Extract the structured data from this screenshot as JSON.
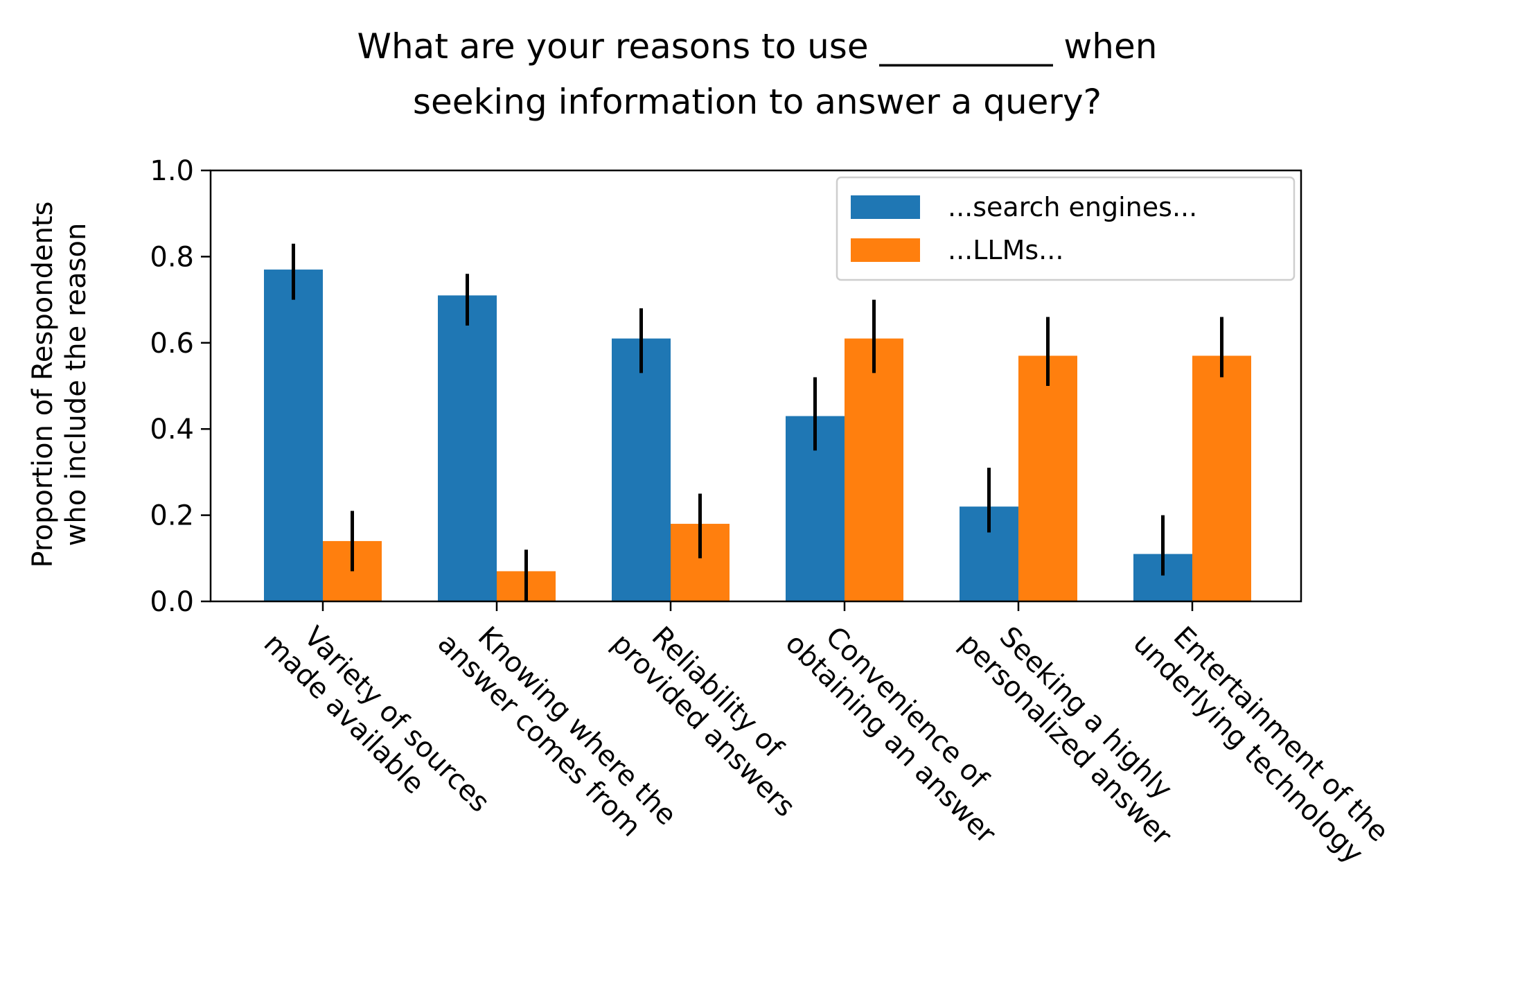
{
  "chart_data": {
    "type": "bar",
    "title_lines": [
      "What are your reasons to use __________ when",
      "seeking information to answer a query?"
    ],
    "ylabel_lines": [
      "Proportion of Respondents",
      "who include the reason"
    ],
    "xlabel": "",
    "ylim": [
      0,
      1.0
    ],
    "yticks": [
      "0.0",
      "0.2",
      "0.4",
      "0.6",
      "0.8",
      "1.0"
    ],
    "ytick_values": [
      0.0,
      0.2,
      0.4,
      0.6,
      0.8,
      1.0
    ],
    "categories": [
      [
        "Variety of sources",
        "made available"
      ],
      [
        "Knowing where the",
        "answer comes from"
      ],
      [
        "Reliability of",
        "provided answers"
      ],
      [
        "Convenience of",
        "obtaining an answer"
      ],
      [
        "Seeking a highly",
        "personalized answer"
      ],
      [
        "Entertainment of the",
        "underlying technology"
      ]
    ],
    "series": [
      {
        "name": "...search engines...",
        "color": "#1f77b4",
        "values": [
          0.77,
          0.71,
          0.61,
          0.43,
          0.22,
          0.11
        ],
        "err_low": [
          0.7,
          0.64,
          0.53,
          0.35,
          0.16,
          0.06
        ],
        "err_high": [
          0.83,
          0.76,
          0.68,
          0.52,
          0.31,
          0.2
        ]
      },
      {
        "name": "...LLMs...",
        "color": "#ff7f0e",
        "values": [
          0.14,
          0.07,
          0.18,
          0.61,
          0.57,
          0.57
        ],
        "err_low": [
          0.07,
          0.0,
          0.1,
          0.53,
          0.5,
          0.52
        ],
        "err_high": [
          0.21,
          0.12,
          0.25,
          0.7,
          0.66,
          0.66
        ]
      }
    ],
    "legend_location": "top-right",
    "grid": false
  }
}
